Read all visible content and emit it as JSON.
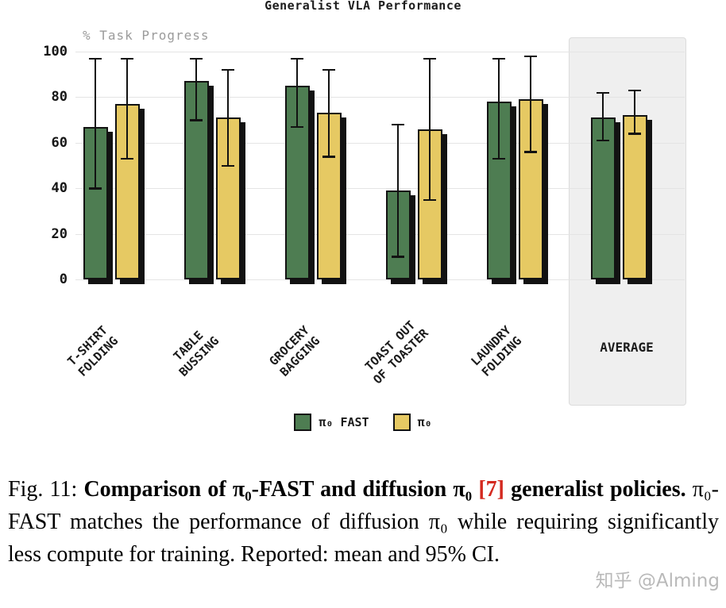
{
  "chart_data": {
    "type": "bar",
    "title": "Generalist VLA Performance",
    "ylabel": "% Task Progress",
    "ylim": [
      0,
      100
    ],
    "yticks": [
      0,
      20,
      40,
      60,
      80,
      100
    ],
    "grid": true,
    "legend_position": "bottom",
    "categories": [
      "T-SHIRT FOLDING",
      "TABLE BUSSING",
      "GROCERY BAGGING",
      "TOAST OUT OF TOASTER",
      "LAUNDRY FOLDING",
      "AVERAGE"
    ],
    "category_label_lines": [
      [
        "T-SHIRT",
        "FOLDING"
      ],
      [
        "TABLE",
        "BUSSING"
      ],
      [
        "GROCERY",
        "BAGGING"
      ],
      [
        "TOAST OUT",
        "OF TOASTER"
      ],
      [
        "LAUNDRY",
        "FOLDING"
      ],
      [
        "AVERAGE"
      ]
    ],
    "highlight_group": "AVERAGE",
    "series": [
      {
        "name": "π₀ FAST",
        "color": "#4e7d52",
        "values": [
          67,
          87,
          85,
          39,
          78,
          71
        ],
        "ci_low": [
          40,
          70,
          67,
          10,
          53,
          61
        ],
        "ci_high": [
          97,
          97,
          97,
          68,
          97,
          82
        ]
      },
      {
        "name": "π₀",
        "color": "#e6c963",
        "values": [
          77,
          71,
          73,
          66,
          79,
          72
        ],
        "ci_low": [
          53,
          50,
          54,
          35,
          56,
          64
        ],
        "ci_high": [
          97,
          92,
          92,
          97,
          98,
          83
        ]
      }
    ]
  },
  "caption": {
    "segments": [
      {
        "t": "Fig. 11: ",
        "bold": false
      },
      {
        "t": "Comparison of π₀-FAST and diffusion π₀ ",
        "bold": true
      },
      {
        "t": "[7]",
        "bold": true,
        "color": "#d42a20"
      },
      {
        "t": " generalist policies. ",
        "bold": true
      },
      {
        "t": "π₀-FAST matches the performance of diffusion π₀ while requiring significantly less compute for training. Reported: mean and 95% CI.",
        "bold": false
      }
    ]
  },
  "watermark": "知乎 @Alming"
}
